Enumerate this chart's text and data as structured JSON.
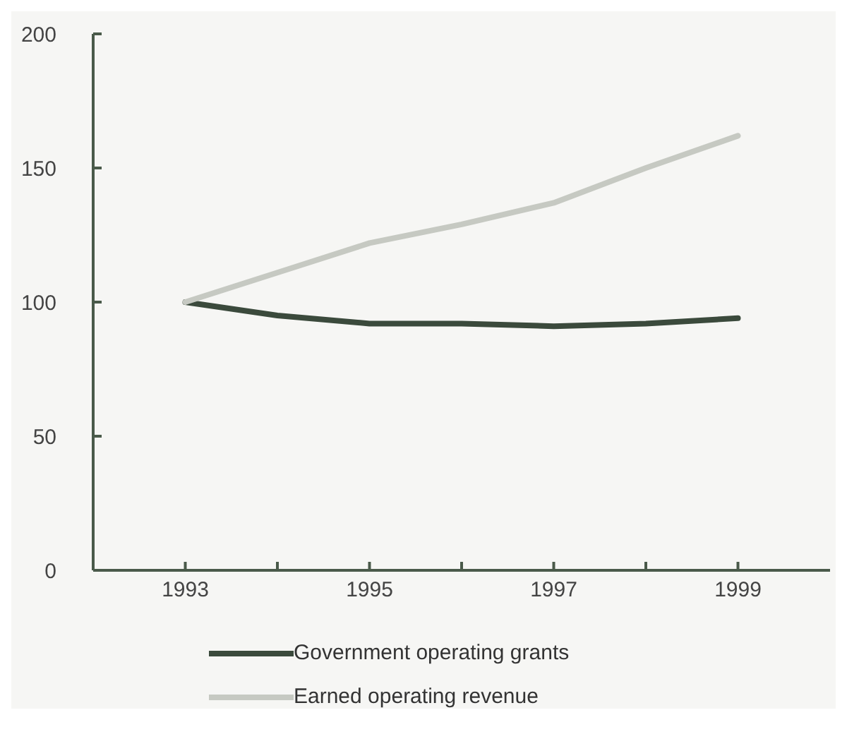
{
  "chart_data": {
    "type": "line",
    "x": [
      1993,
      1994,
      1995,
      1996,
      1997,
      1998,
      1999
    ],
    "series": [
      {
        "name": "Government operating grants",
        "color": "#3b4a3c",
        "values": [
          100,
          95,
          92,
          92,
          91,
          92,
          94
        ]
      },
      {
        "name": "Earned operating revenue",
        "color": "#c6c9c2",
        "values": [
          100,
          111,
          122,
          129,
          137,
          150,
          162
        ]
      }
    ],
    "xlim": [
      1992,
      2000
    ],
    "xticks": [
      1993,
      {
        "value": 1994,
        "label": null
      },
      1995,
      {
        "value": 1996,
        "label": null
      },
      1997,
      {
        "value": 1998,
        "label": null
      },
      1999
    ],
    "ylim": [
      0,
      200
    ],
    "yticks": [
      0,
      50,
      100,
      150,
      200
    ],
    "grid": false,
    "legend": "bottom",
    "marker": "none",
    "line_style": "solid"
  }
}
